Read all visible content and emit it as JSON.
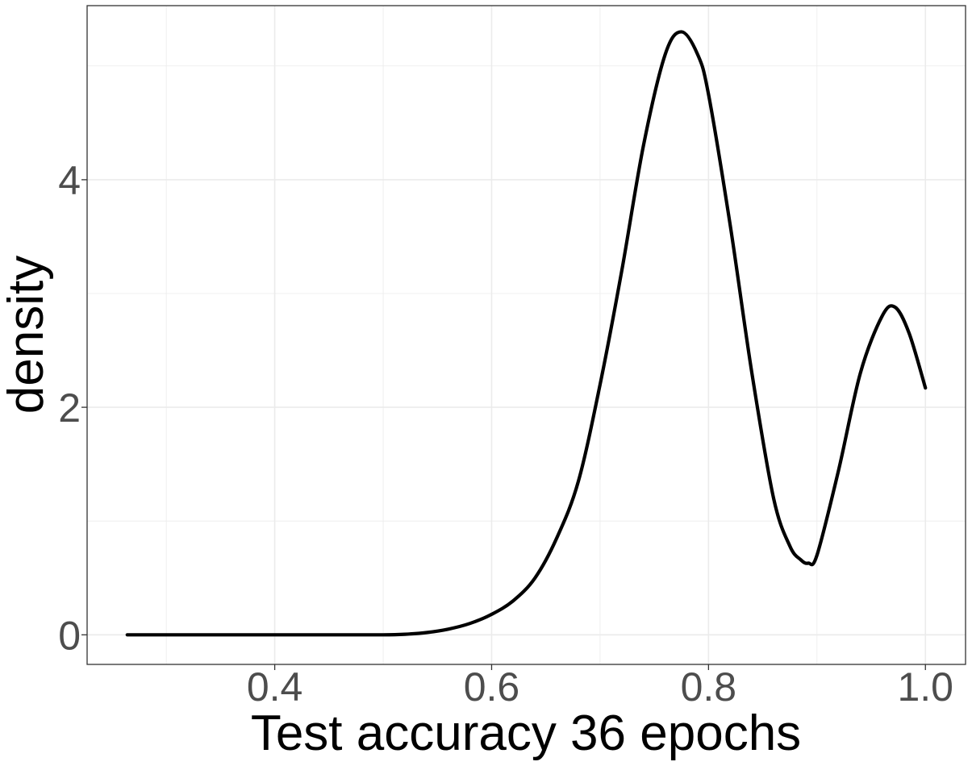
{
  "chart_data": {
    "type": "line",
    "title": "",
    "xlabel": "Test accuracy 36 epochs",
    "ylabel": "density",
    "xlim": [
      0.227,
      1.037
    ],
    "ylim": [
      -0.26,
      5.53
    ],
    "x_ticks": [
      0.4,
      0.6,
      0.8,
      1.0
    ],
    "x_tick_labels": [
      "0.4",
      "0.6",
      "0.8",
      "1.0"
    ],
    "x_minor_ticks": [
      0.3,
      0.5,
      0.7,
      0.9
    ],
    "y_ticks": [
      0,
      2,
      4
    ],
    "y_tick_labels": [
      "0",
      "2",
      "4"
    ],
    "y_minor_ticks": [
      1,
      3,
      5
    ],
    "grid": true,
    "theme": "black-and-white",
    "series": [
      {
        "color": "#000000",
        "x": [
          0.264,
          0.3,
          0.35,
          0.4,
          0.45,
          0.5,
          0.52,
          0.54,
          0.56,
          0.58,
          0.6,
          0.62,
          0.64,
          0.66,
          0.68,
          0.7,
          0.72,
          0.74,
          0.76,
          0.775,
          0.79,
          0.8,
          0.82,
          0.84,
          0.86,
          0.875,
          0.885,
          0.892,
          0.9,
          0.92,
          0.94,
          0.96,
          0.972,
          0.985,
          1.0
        ],
        "y": [
          0.0,
          0.0,
          0.0,
          0.0,
          0.0,
          0.0,
          0.005,
          0.02,
          0.05,
          0.1,
          0.18,
          0.3,
          0.5,
          0.85,
          1.35,
          2.2,
          3.2,
          4.3,
          5.1,
          5.3,
          5.1,
          4.75,
          3.6,
          2.3,
          1.2,
          0.78,
          0.66,
          0.63,
          0.7,
          1.45,
          2.3,
          2.8,
          2.88,
          2.65,
          2.17
        ]
      }
    ]
  }
}
